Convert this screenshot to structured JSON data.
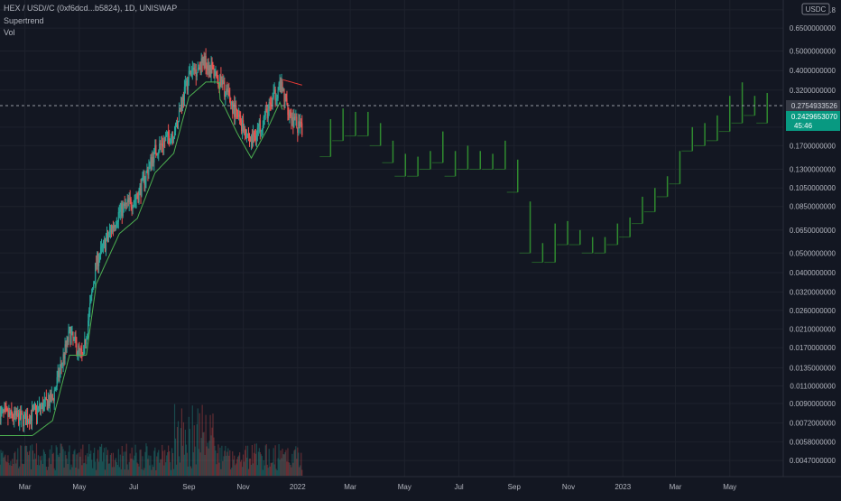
{
  "header": {
    "symbol": "HEX / USD//C (0xf6dcd...b5824), 1D, UNISWAP",
    "indicator_1": "Supertrend",
    "indicator_2": "Vol"
  },
  "price_axis": {
    "currency_badge": "USDC",
    "ticks": [
      "0.8",
      "0.6500000000",
      "0.5000000000",
      "0.4000000000",
      "0.3200000000",
      "0.2100000000",
      "0.1700000000",
      "0.1300000000",
      "0.1050000000",
      "0.0850000000",
      "0.0650000000",
      "0.0500000000",
      "0.0400000000",
      "0.0320000000",
      "0.0260000000",
      "0.0210000000",
      "0.0170000000",
      "0.0135000000",
      "0.0110000000",
      "0.0090000000",
      "0.0072000000",
      "0.0058000000",
      "0.0047000000"
    ],
    "hover_price_label": "0.2754933526",
    "last_price_label": "0.2429653070",
    "countdown_label": "45:46"
  },
  "time_axis": {
    "labels": [
      "Mar",
      "May",
      "Jul",
      "Sep",
      "Nov",
      "2022",
      "Mar",
      "May",
      "Jul",
      "Sep",
      "Nov",
      "2023",
      "Mar",
      "May"
    ]
  },
  "colors": {
    "background": "#131722",
    "grid": "#1e222d",
    "up": "#26a69a",
    "down": "#ef5350",
    "bar_up": "#2f8a2f",
    "supertrend_up": "#4caf50",
    "supertrend_down": "#e53935",
    "axis_text": "#b2b5be",
    "last_price_bg": "#089981"
  },
  "chart_data": {
    "type": "ohlc",
    "y_scale": "log",
    "ylim": [
      0.0042,
      0.85
    ],
    "xlim": [
      "2021-02-01",
      "2023-06-30"
    ],
    "weekly_bars": [
      {
        "date": "2022-02-07",
        "high": 0.23,
        "low": 0.15
      },
      {
        "date": "2022-02-21",
        "high": 0.26,
        "low": 0.18
      },
      {
        "date": "2022-03-07",
        "high": 0.25,
        "low": 0.19
      },
      {
        "date": "2022-03-21",
        "high": 0.25,
        "low": 0.19
      },
      {
        "date": "2022-04-04",
        "high": 0.22,
        "low": 0.17
      },
      {
        "date": "2022-04-18",
        "high": 0.18,
        "low": 0.14
      },
      {
        "date": "2022-05-02",
        "high": 0.155,
        "low": 0.12
      },
      {
        "date": "2022-05-16",
        "high": 0.15,
        "low": 0.12
      },
      {
        "date": "2022-05-30",
        "high": 0.16,
        "low": 0.13
      },
      {
        "date": "2022-06-13",
        "high": 0.2,
        "low": 0.14
      },
      {
        "date": "2022-06-27",
        "high": 0.16,
        "low": 0.12
      },
      {
        "date": "2022-07-11",
        "high": 0.17,
        "low": 0.13
      },
      {
        "date": "2022-07-25",
        "high": 0.16,
        "low": 0.13
      },
      {
        "date": "2022-08-08",
        "high": 0.155,
        "low": 0.13
      },
      {
        "date": "2022-08-22",
        "high": 0.18,
        "low": 0.13
      },
      {
        "date": "2022-09-05",
        "high": 0.145,
        "low": 0.1
      },
      {
        "date": "2022-09-19",
        "high": 0.09,
        "low": 0.05
      },
      {
        "date": "2022-10-03",
        "high": 0.056,
        "low": 0.045
      },
      {
        "date": "2022-10-17",
        "high": 0.07,
        "low": 0.045
      },
      {
        "date": "2022-10-31",
        "high": 0.072,
        "low": 0.055
      },
      {
        "date": "2022-11-14",
        "high": 0.065,
        "low": 0.055
      },
      {
        "date": "2022-11-28",
        "high": 0.06,
        "low": 0.05
      },
      {
        "date": "2022-12-12",
        "high": 0.06,
        "low": 0.05
      },
      {
        "date": "2022-12-26",
        "high": 0.07,
        "low": 0.055
      },
      {
        "date": "2023-01-09",
        "high": 0.075,
        "low": 0.06
      },
      {
        "date": "2023-01-23",
        "high": 0.095,
        "low": 0.07
      },
      {
        "date": "2023-02-06",
        "high": 0.105,
        "low": 0.08
      },
      {
        "date": "2023-02-20",
        "high": 0.12,
        "low": 0.095
      },
      {
        "date": "2023-03-06",
        "high": 0.16,
        "low": 0.11
      },
      {
        "date": "2023-03-20",
        "high": 0.21,
        "low": 0.16
      },
      {
        "date": "2023-04-03",
        "high": 0.22,
        "low": 0.17
      },
      {
        "date": "2023-04-17",
        "high": 0.24,
        "low": 0.18
      },
      {
        "date": "2023-05-01",
        "high": 0.3,
        "low": 0.2
      },
      {
        "date": "2023-05-15",
        "high": 0.35,
        "low": 0.22
      },
      {
        "date": "2023-05-29",
        "high": 0.3,
        "low": 0.24
      },
      {
        "date": "2023-06-12",
        "high": 0.31,
        "low": 0.22
      }
    ]
  }
}
